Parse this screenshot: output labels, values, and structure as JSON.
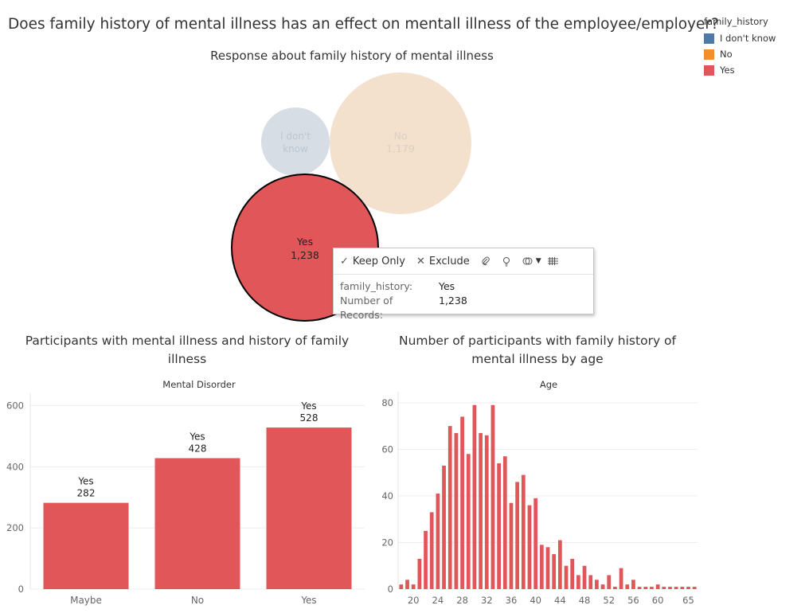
{
  "dashboard": {
    "title": "Does family history of mental illness has an effect on mentall illness of the employee/employer?"
  },
  "legend": {
    "title": "family_history",
    "items": [
      {
        "label": "I don't know",
        "color": "#4e79a7"
      },
      {
        "label": "No",
        "color": "#f28e2b"
      },
      {
        "label": "Yes",
        "color": "#e15759"
      }
    ]
  },
  "tooltip": {
    "actions": {
      "keep_only": "Keep Only",
      "exclude": "Exclude"
    },
    "icons": [
      "check-icon",
      "x-icon",
      "paperclip-icon",
      "lightbulb-icon",
      "group-icon",
      "chevron-down-icon",
      "table-icon"
    ],
    "fields": [
      {
        "key": "family_history:",
        "value": "Yes"
      },
      {
        "key": "Number of Records:",
        "value": "1,238"
      }
    ]
  },
  "chart_data": [
    {
      "type": "bubble",
      "title": "Response about family history of mental illness",
      "items": [
        {
          "label": "I don't\nknow",
          "category": "I don't know",
          "value_text": "",
          "color": "#d6dde5",
          "text_color": "#bcc6d0"
        },
        {
          "label": "No",
          "category": "No",
          "value": 1179,
          "value_text": "1,179",
          "color": "#f3e0cd",
          "text_color": "#d9cfc6"
        },
        {
          "label": "Yes",
          "category": "Yes",
          "value": 1238,
          "value_text": "1,238",
          "color": "#e15759",
          "text_color": "#222222",
          "selected": true
        }
      ]
    },
    {
      "type": "bar",
      "title": "Participants with mental illness and history of family illness",
      "header": "Mental Disorder",
      "categories": [
        "Maybe",
        "No",
        "Yes"
      ],
      "series": [
        {
          "name": "Yes",
          "values": [
            282,
            428,
            528
          ],
          "color": "#e15759"
        }
      ],
      "yticks": [
        0,
        200,
        400,
        600
      ],
      "ylim": [
        0,
        640
      ],
      "grid": true
    },
    {
      "type": "bar",
      "title": "Number of participants with family history of mental illness by age",
      "header": "Age",
      "x": [
        18,
        19,
        20,
        21,
        22,
        23,
        24,
        25,
        26,
        27,
        28,
        29,
        30,
        31,
        32,
        33,
        34,
        35,
        36,
        37,
        38,
        39,
        40,
        41,
        42,
        43,
        44,
        45,
        46,
        47,
        48,
        49,
        50,
        51,
        52,
        53,
        54,
        55,
        56,
        57,
        58,
        59,
        60,
        61,
        62,
        63,
        64,
        65,
        66
      ],
      "values": [
        2,
        4,
        2,
        13,
        25,
        33,
        41,
        53,
        70,
        67,
        74,
        58,
        79,
        67,
        66,
        79,
        54,
        57,
        37,
        46,
        49,
        36,
        39,
        19,
        18,
        15,
        21,
        10,
        13,
        6,
        10,
        6,
        4,
        2,
        6,
        1,
        9,
        2,
        4,
        1,
        1,
        1,
        2,
        1,
        1,
        1,
        1,
        1,
        1
      ],
      "series": [
        {
          "name": "Yes",
          "color": "#e15759"
        }
      ],
      "xticks": [
        20,
        24,
        28,
        32,
        36,
        40,
        44,
        48,
        52,
        56,
        60,
        65
      ],
      "yticks": [
        0,
        20,
        40,
        60,
        80
      ],
      "ylim": [
        0,
        82
      ],
      "grid": true
    }
  ]
}
